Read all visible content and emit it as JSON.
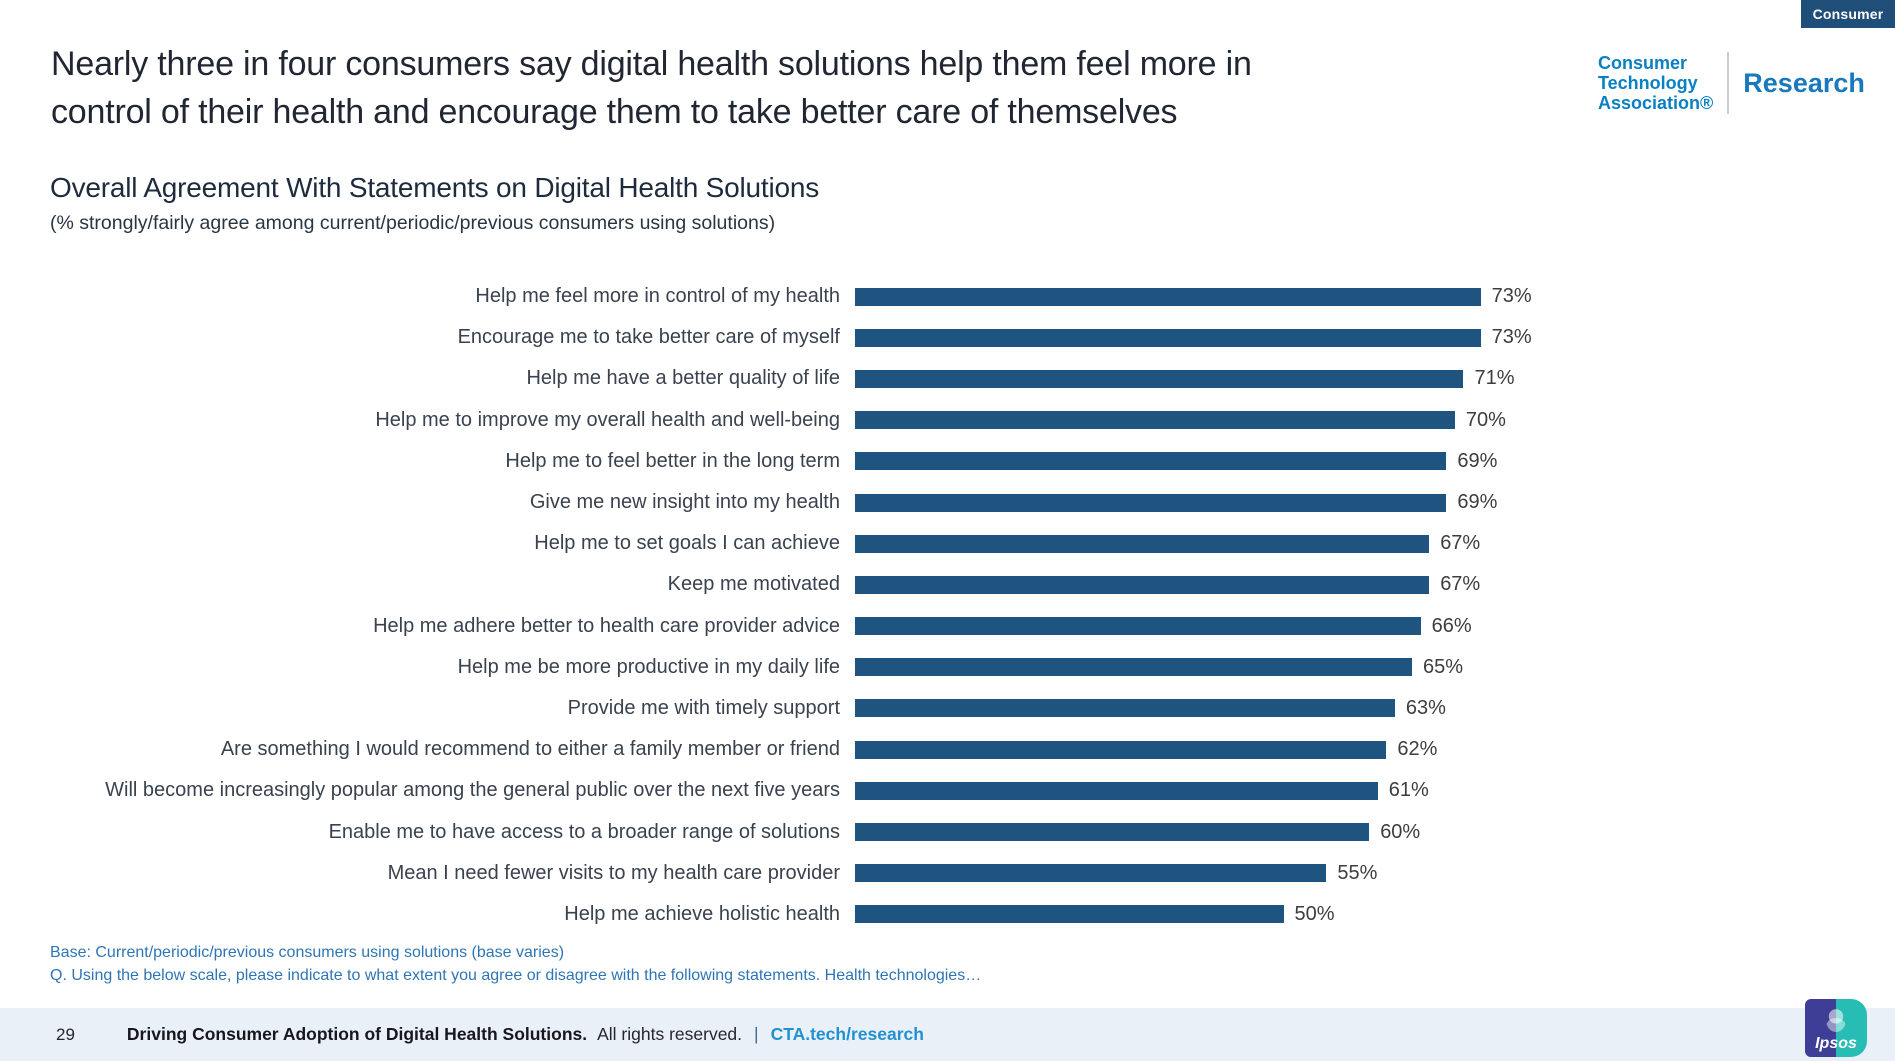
{
  "badge": {
    "label": "Consumer"
  },
  "header": {
    "title": "Nearly three in four consumers say digital health solutions help them feel more in control of their health and encourage them to take better care of themselves",
    "logo": {
      "line1": "Consumer",
      "line2": "Technology",
      "line3": "Association®",
      "research": "Research"
    }
  },
  "chart_heading": "Overall Agreement With Statements on Digital Health Solutions",
  "chart_subheading": "(% strongly/fairly agree among current/periodic/previous consumers using solutions)",
  "chart_data": {
    "type": "bar",
    "orientation": "horizontal",
    "title": "Overall Agreement With Statements on Digital Health Solutions",
    "subtitle": "(% strongly/fairly agree among current/periodic/previous consumers using solutions)",
    "unit": "%",
    "xlim": [
      0,
      100
    ],
    "grid": false,
    "legend": false,
    "bar_color": "#1F5480",
    "categories": [
      "Help me feel more in control of my health",
      "Encourage me to take better care of myself",
      "Help me have a better quality of life",
      "Help me to improve my overall health and well-being",
      "Help me to feel better in the long term",
      "Give me new insight into my health",
      "Help me to set goals I can achieve",
      "Keep me motivated",
      "Help me adhere better to health care provider advice",
      "Help me be more productive in my daily life",
      "Provide me with timely support",
      "Are something I would recommend to either a family member or friend",
      "Will become increasingly popular among the general public over the next five years",
      "Enable me to have access to a broader range of solutions",
      "Mean I need fewer visits to my health care provider",
      "Help me achieve holistic health"
    ],
    "values": [
      73,
      73,
      71,
      70,
      69,
      69,
      67,
      67,
      66,
      65,
      63,
      62,
      61,
      60,
      55,
      50
    ],
    "value_labels": [
      "73%",
      "73%",
      "71%",
      "70%",
      "69%",
      "69%",
      "67%",
      "67%",
      "66%",
      "65%",
      "63%",
      "62%",
      "61%",
      "60%",
      "55%",
      "50%"
    ]
  },
  "footnotes": {
    "base": "Base: Current/periodic/previous consumers using solutions (base varies)",
    "question": "Q. Using the below scale, please indicate to what extent you agree or disagree with the following statements. Health technologies…"
  },
  "footer": {
    "page_number": "29",
    "report_title": "Driving Consumer Adoption of Digital Health Solutions.",
    "rights": "All rights reserved.",
    "separator": "|",
    "link": "CTA.tech/research",
    "ipsos": "Ipsos"
  },
  "colors": {
    "bar": "#1F5480",
    "badge_bg": "#1F4E79",
    "footnote_blue": "#2E75B6",
    "footer_bg": "#EAF0F8",
    "link_blue": "#2191D0",
    "cta_logo_blue": "#0A80C4",
    "ipsos_indigo": "#3E3E96",
    "ipsos_teal": "#28BDB4"
  }
}
